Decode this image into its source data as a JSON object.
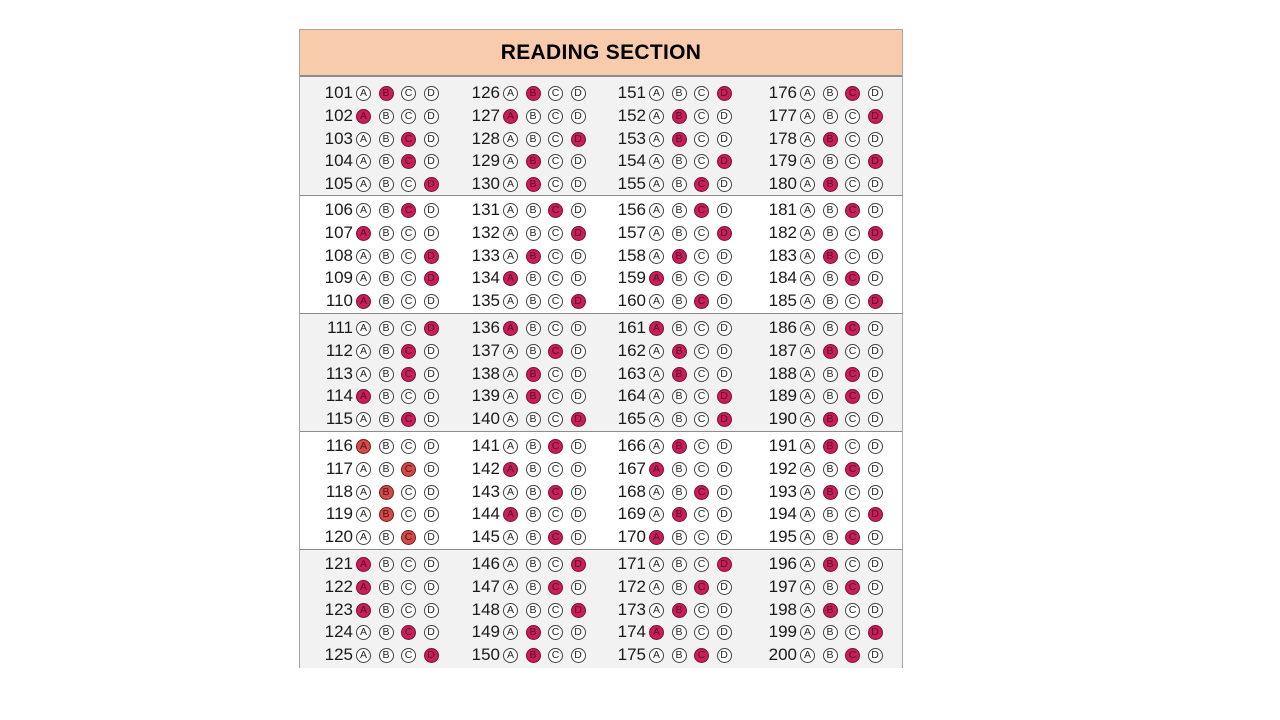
{
  "title": "READING SECTION",
  "choices": [
    "A",
    "B",
    "C",
    "D"
  ],
  "colors": {
    "header_bg": "#f8cbad",
    "marked": "#c81e5a",
    "marked_alt": "#d24a4a",
    "shade": "#f2f2f2"
  },
  "blocks": [
    {
      "shaded": true,
      "columns": [
        [
          {
            "n": "101",
            "ans": "B"
          },
          {
            "n": "102",
            "ans": "A"
          },
          {
            "n": "103",
            "ans": "C"
          },
          {
            "n": "104",
            "ans": "C"
          },
          {
            "n": "105",
            "ans": "D"
          }
        ],
        [
          {
            "n": "126",
            "ans": "B"
          },
          {
            "n": "127",
            "ans": "A"
          },
          {
            "n": "128",
            "ans": "D"
          },
          {
            "n": "129",
            "ans": "B"
          },
          {
            "n": "130",
            "ans": "B"
          }
        ],
        [
          {
            "n": "151",
            "ans": "D"
          },
          {
            "n": "152",
            "ans": "B"
          },
          {
            "n": "153",
            "ans": "B"
          },
          {
            "n": "154",
            "ans": "D"
          },
          {
            "n": "155",
            "ans": "C"
          }
        ],
        [
          {
            "n": "176",
            "ans": "C"
          },
          {
            "n": "177",
            "ans": "D"
          },
          {
            "n": "178",
            "ans": "B"
          },
          {
            "n": "179",
            "ans": "D"
          },
          {
            "n": "180",
            "ans": "B"
          }
        ]
      ]
    },
    {
      "shaded": false,
      "columns": [
        [
          {
            "n": "106",
            "ans": "C"
          },
          {
            "n": "107",
            "ans": "A"
          },
          {
            "n": "108",
            "ans": "D"
          },
          {
            "n": "109",
            "ans": "D"
          },
          {
            "n": "110",
            "ans": "A"
          }
        ],
        [
          {
            "n": "131",
            "ans": "C"
          },
          {
            "n": "132",
            "ans": "D"
          },
          {
            "n": "133",
            "ans": "B"
          },
          {
            "n": "134",
            "ans": "A"
          },
          {
            "n": "135",
            "ans": "D"
          }
        ],
        [
          {
            "n": "156",
            "ans": "C"
          },
          {
            "n": "157",
            "ans": "D"
          },
          {
            "n": "158",
            "ans": "B"
          },
          {
            "n": "159",
            "ans": "A"
          },
          {
            "n": "160",
            "ans": "C"
          }
        ],
        [
          {
            "n": "181",
            "ans": "C"
          },
          {
            "n": "182",
            "ans": "D"
          },
          {
            "n": "183",
            "ans": "B"
          },
          {
            "n": "184",
            "ans": "C"
          },
          {
            "n": "185",
            "ans": "D"
          }
        ]
      ]
    },
    {
      "shaded": true,
      "columns": [
        [
          {
            "n": "111",
            "ans": "D"
          },
          {
            "n": "112",
            "ans": "C"
          },
          {
            "n": "113",
            "ans": "C"
          },
          {
            "n": "114",
            "ans": "A"
          },
          {
            "n": "115",
            "ans": "C"
          }
        ],
        [
          {
            "n": "136",
            "ans": "A"
          },
          {
            "n": "137",
            "ans": "C"
          },
          {
            "n": "138",
            "ans": "B"
          },
          {
            "n": "139",
            "ans": "B"
          },
          {
            "n": "140",
            "ans": "D"
          }
        ],
        [
          {
            "n": "161",
            "ans": "A"
          },
          {
            "n": "162",
            "ans": "B"
          },
          {
            "n": "163",
            "ans": "B"
          },
          {
            "n": "164",
            "ans": "D"
          },
          {
            "n": "165",
            "ans": "D"
          }
        ],
        [
          {
            "n": "186",
            "ans": "C"
          },
          {
            "n": "187",
            "ans": "B"
          },
          {
            "n": "188",
            "ans": "C"
          },
          {
            "n": "189",
            "ans": "C"
          },
          {
            "n": "190",
            "ans": "B"
          }
        ]
      ]
    },
    {
      "shaded": false,
      "columns": [
        [
          {
            "n": "116",
            "ans": "A",
            "alt": true
          },
          {
            "n": "117",
            "ans": "C",
            "alt": true
          },
          {
            "n": "118",
            "ans": "B",
            "alt": true
          },
          {
            "n": "119",
            "ans": "B",
            "alt": true
          },
          {
            "n": "120",
            "ans": "C",
            "alt": true
          }
        ],
        [
          {
            "n": "141",
            "ans": "C"
          },
          {
            "n": "142",
            "ans": "A"
          },
          {
            "n": "143",
            "ans": "C"
          },
          {
            "n": "144",
            "ans": "A"
          },
          {
            "n": "145",
            "ans": "C"
          }
        ],
        [
          {
            "n": "166",
            "ans": "B"
          },
          {
            "n": "167",
            "ans": "A"
          },
          {
            "n": "168",
            "ans": "C"
          },
          {
            "n": "169",
            "ans": "B"
          },
          {
            "n": "170",
            "ans": "A"
          }
        ],
        [
          {
            "n": "191",
            "ans": "B"
          },
          {
            "n": "192",
            "ans": "C"
          },
          {
            "n": "193",
            "ans": "B"
          },
          {
            "n": "194",
            "ans": "D"
          },
          {
            "n": "195",
            "ans": "C"
          }
        ]
      ]
    },
    {
      "shaded": true,
      "columns": [
        [
          {
            "n": "121",
            "ans": "A"
          },
          {
            "n": "122",
            "ans": "A"
          },
          {
            "n": "123",
            "ans": "A"
          },
          {
            "n": "124",
            "ans": "C"
          },
          {
            "n": "125",
            "ans": "D"
          }
        ],
        [
          {
            "n": "146",
            "ans": "D"
          },
          {
            "n": "147",
            "ans": "C"
          },
          {
            "n": "148",
            "ans": "D"
          },
          {
            "n": "149",
            "ans": "B"
          },
          {
            "n": "150",
            "ans": "B"
          }
        ],
        [
          {
            "n": "171",
            "ans": "D"
          },
          {
            "n": "172",
            "ans": "C"
          },
          {
            "n": "173",
            "ans": "B"
          },
          {
            "n": "174",
            "ans": "A"
          },
          {
            "n": "175",
            "ans": "C"
          }
        ],
        [
          {
            "n": "196",
            "ans": "B"
          },
          {
            "n": "197",
            "ans": "C"
          },
          {
            "n": "198",
            "ans": "B"
          },
          {
            "n": "199",
            "ans": "D"
          },
          {
            "n": "200",
            "ans": "C"
          }
        ]
      ]
    }
  ]
}
